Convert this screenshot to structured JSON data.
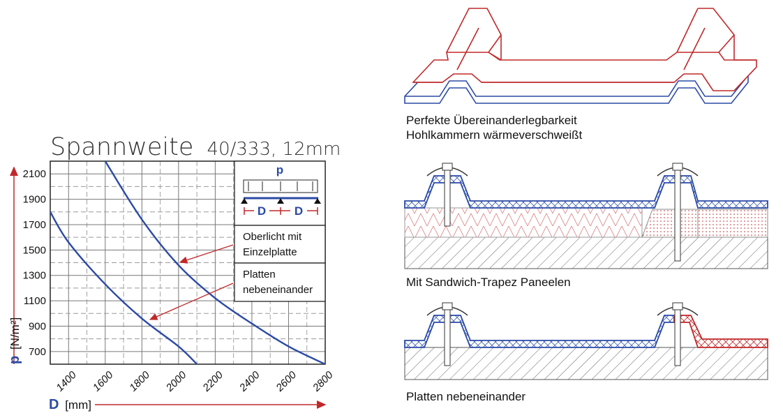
{
  "chart_title": "Spannweite",
  "chart_subtitle": "40/333, 12mm",
  "y_axis": {
    "symbol": "p",
    "unit": "[N/m²]"
  },
  "x_axis": {
    "symbol": "D",
    "unit": "[mm]"
  },
  "inset": {
    "load_symbol": "p",
    "span_left": "D",
    "span_right": "D"
  },
  "legend": {
    "line1": [
      "Oberlicht mit",
      "Einzelplatte"
    ],
    "line2": [
      "Platten",
      "nebeneinander"
    ]
  },
  "captions": {
    "top_1": "Perfekte Übereinanderlegbarkeit",
    "top_2": "Hohlkammern wärmeverschweißt",
    "middle": "Mit Sandwich-Trapez Paneelen",
    "bottom": "Platten nebeneinander"
  },
  "colors": {
    "axis_blue": "#2b4aa6",
    "accent_red": "#c0282a",
    "curve": "#2b4aa6"
  },
  "chart_data": {
    "type": "line",
    "title": "Spannweite 40/333, 12mm",
    "xlabel": "D [mm]",
    "ylabel": "p [N/m²]",
    "xlim": [
      1300,
      2800
    ],
    "ylim": [
      600,
      2200
    ],
    "x_ticks": [
      1400,
      1600,
      1800,
      2000,
      2200,
      2400,
      2600,
      2800
    ],
    "y_ticks": [
      700,
      900,
      1100,
      1300,
      1500,
      1700,
      1900,
      2100
    ],
    "grid": true,
    "series": [
      {
        "name": "Oberlicht mit Einzelplatte",
        "x": [
          1600,
          1800,
          2000,
          2200,
          2400,
          2600,
          2800
        ],
        "y": [
          2200,
          1740,
          1380,
          1120,
          920,
          740,
          600
        ]
      },
      {
        "name": "Platten nebeneinander",
        "x": [
          1300,
          1400,
          1600,
          1800,
          2000,
          2100
        ],
        "y": [
          1800,
          1560,
          1230,
          960,
          740,
          600
        ]
      }
    ]
  }
}
